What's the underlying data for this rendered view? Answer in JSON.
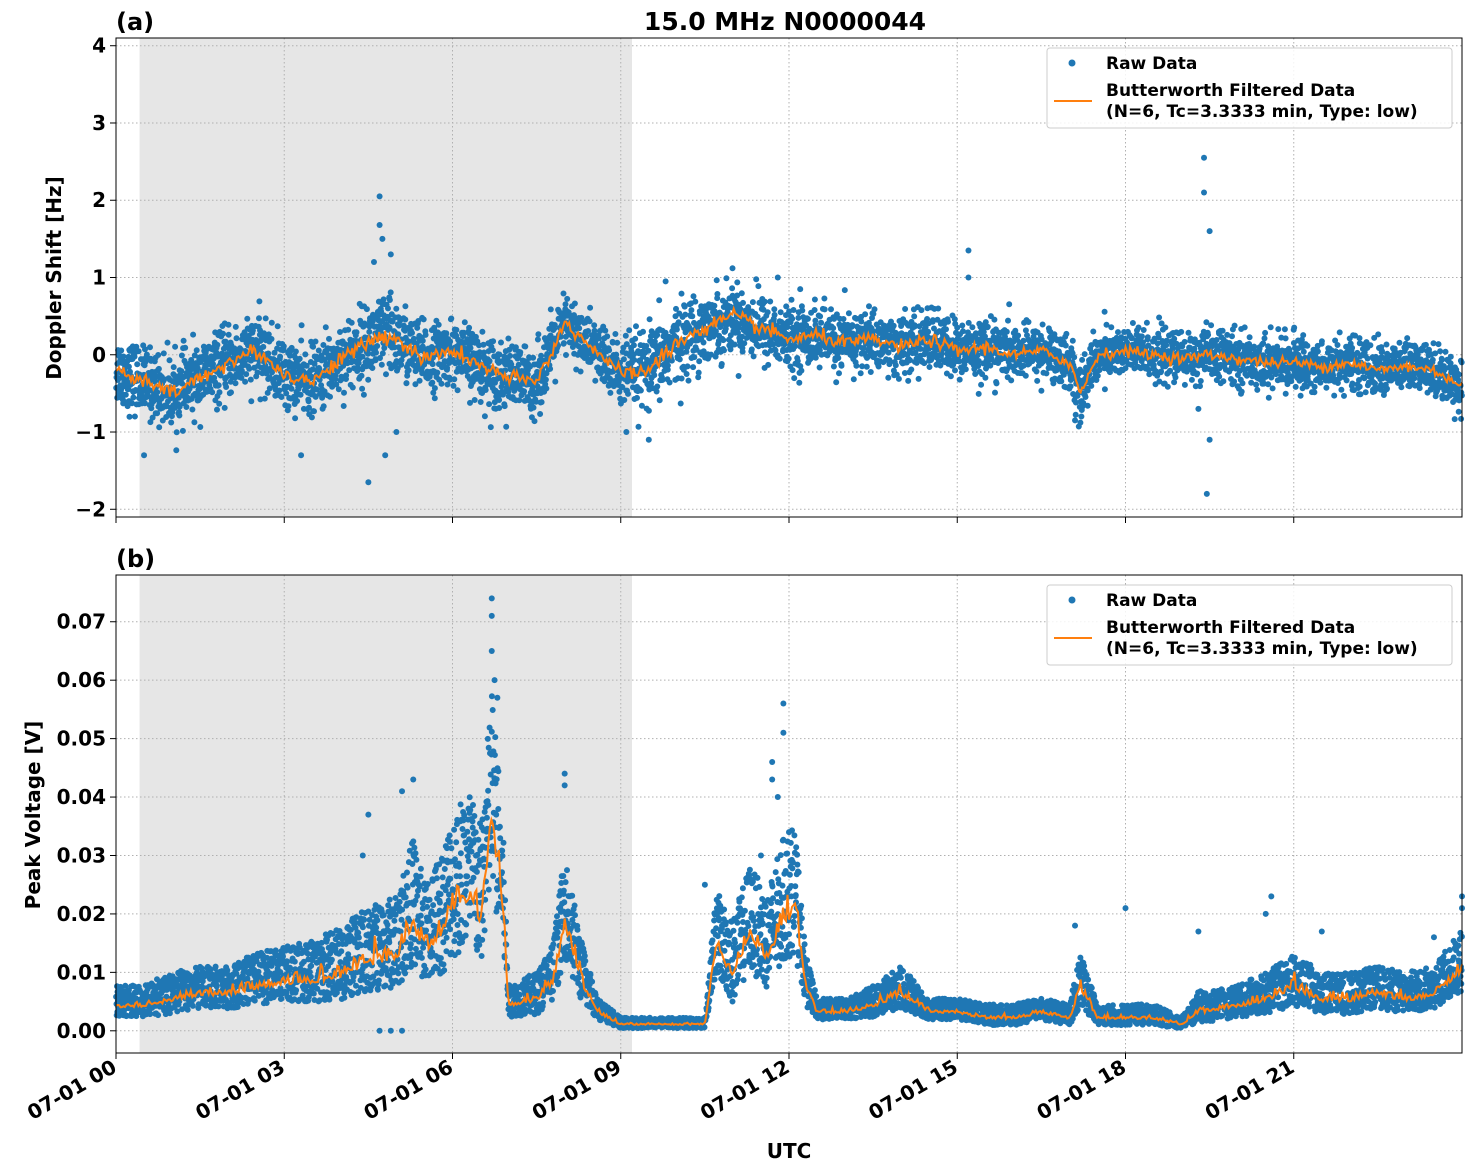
{
  "chart_data": [
    {
      "type": "scatter",
      "panel_label": "(a)",
      "title": "15.0 MHz N0000044",
      "ylabel": "Doppler Shift [Hz]",
      "xlabel": "",
      "xlim_hours": [
        0,
        24
      ],
      "ylim": [
        -2.1,
        4.1
      ],
      "yticks": [
        -2,
        -1,
        0,
        1,
        2,
        3,
        4
      ],
      "ytick_labels": [
        "−2",
        "−1",
        "0",
        "1",
        "2",
        "3",
        "4"
      ],
      "xticks_hours": [
        0,
        3,
        6,
        9,
        12,
        15,
        18,
        21
      ],
      "xtick_labels": [],
      "shaded_region_hours": [
        0.42,
        9.2
      ],
      "grid": true,
      "legend_position": "top-right",
      "legend": [
        {
          "label": "Raw Data",
          "color": "#1f77b4",
          "marker": "dot"
        },
        {
          "label": "Butterworth Filtered Data\n(N=6, Tc=3.3333 min, Type: low)",
          "color": "#ff7f0e",
          "marker": "line"
        }
      ],
      "series": [
        {
          "name": "Butterworth Filtered Data",
          "color": "#ff7f0e",
          "x": [
            0,
            0.5,
            1,
            1.5,
            2,
            2.5,
            3,
            3.5,
            4,
            4.5,
            4.8,
            5,
            5.5,
            6,
            6.5,
            7,
            7.5,
            8,
            8.5,
            9,
            9.5,
            10,
            10.5,
            11,
            11.5,
            12,
            12.5,
            13,
            13.5,
            14,
            14.5,
            15,
            15.5,
            16,
            16.5,
            17,
            17.2,
            17.5,
            18,
            18.5,
            19,
            19.5,
            20,
            20.5,
            21,
            21.5,
            22,
            22.5,
            23,
            23.5,
            24
          ],
          "y": [
            -0.2,
            -0.35,
            -0.5,
            -0.3,
            -0.1,
            0.05,
            -0.25,
            -0.35,
            -0.05,
            0.15,
            0.25,
            0.2,
            -0.05,
            0.05,
            -0.15,
            -0.3,
            -0.35,
            0.4,
            0.1,
            -0.25,
            -0.2,
            0.15,
            0.35,
            0.5,
            0.35,
            0.2,
            0.25,
            0.15,
            0.2,
            0.1,
            0.2,
            0.05,
            0.1,
            0.0,
            0.05,
            -0.1,
            -0.5,
            0.0,
            0.05,
            0.0,
            -0.05,
            0.0,
            -0.05,
            -0.1,
            -0.1,
            -0.15,
            -0.1,
            -0.2,
            -0.15,
            -0.2,
            -0.4
          ]
        },
        {
          "name": "Raw Data",
          "color": "#1f77b4",
          "spread": [
            0.4,
            0.4,
            0.4,
            0.4,
            0.4,
            0.4,
            0.4,
            0.4,
            0.4,
            0.45,
            0.5,
            0.45,
            0.4,
            0.35,
            0.4,
            0.4,
            0.4,
            0.35,
            0.35,
            0.4,
            0.45,
            0.45,
            0.4,
            0.4,
            0.4,
            0.35,
            0.35,
            0.35,
            0.35,
            0.35,
            0.35,
            0.35,
            0.35,
            0.3,
            0.3,
            0.35,
            0.35,
            0.3,
            0.3,
            0.3,
            0.3,
            0.3,
            0.3,
            0.3,
            0.3,
            0.3,
            0.3,
            0.3,
            0.3,
            0.3,
            0.3
          ],
          "outliers": [
            [
              4.6,
              1.2
            ],
            [
              4.7,
              2.05
            ],
            [
              4.7,
              1.68
            ],
            [
              4.75,
              1.5
            ],
            [
              4.8,
              -1.3
            ],
            [
              4.5,
              -1.65
            ],
            [
              4.9,
              1.3
            ],
            [
              5.0,
              -1.0
            ],
            [
              3.3,
              -1.3
            ],
            [
              0.5,
              -1.3
            ],
            [
              15.2,
              1.35
            ],
            [
              15.2,
              1.0
            ],
            [
              19.4,
              2.55
            ],
            [
              19.4,
              2.1
            ],
            [
              19.5,
              1.6
            ],
            [
              19.5,
              -1.1
            ],
            [
              19.45,
              -1.8
            ],
            [
              19.3,
              -0.7
            ],
            [
              9.1,
              -1.0
            ],
            [
              9.5,
              -1.1
            ],
            [
              9.8,
              0.95
            ],
            [
              17.1,
              -0.85
            ],
            [
              12.2,
              0.85
            ],
            [
              11.8,
              1.0
            ]
          ]
        }
      ]
    },
    {
      "type": "scatter",
      "panel_label": "(b)",
      "title": "",
      "ylabel": "Peak Voltage [V]",
      "xlabel": "UTC",
      "xlim_hours": [
        0,
        24
      ],
      "ylim": [
        -0.0038,
        0.078
      ],
      "yticks": [
        0,
        0.01,
        0.02,
        0.03,
        0.04,
        0.05,
        0.06,
        0.07
      ],
      "ytick_labels": [
        "0.00",
        "0.01",
        "0.02",
        "0.03",
        "0.04",
        "0.05",
        "0.06",
        "0.07"
      ],
      "xticks_hours": [
        0,
        3,
        6,
        9,
        12,
        15,
        18,
        21
      ],
      "xtick_labels": [
        "07-01 00",
        "07-01 03",
        "07-01 06",
        "07-01 09",
        "07-01 12",
        "07-01 15",
        "07-01 18",
        "07-01 21"
      ],
      "shaded_region_hours": [
        0.42,
        9.2
      ],
      "grid": true,
      "legend_position": "top-right",
      "legend": [
        {
          "label": "Raw Data",
          "color": "#1f77b4",
          "marker": "dot"
        },
        {
          "label": "Butterworth Filtered Data\n(N=6, Tc=3.3333 min, Type: low)",
          "color": "#ff7f0e",
          "marker": "line"
        }
      ],
      "series": [
        {
          "name": "Butterworth Filtered Data",
          "color": "#ff7f0e",
          "x": [
            0,
            0.5,
            1,
            1.5,
            2,
            2.5,
            3,
            3.5,
            4,
            4.5,
            5,
            5.3,
            5.5,
            5.8,
            6,
            6.3,
            6.5,
            6.7,
            6.9,
            7,
            7.5,
            7.8,
            8,
            8.3,
            8.6,
            9,
            9.5,
            10,
            10.5,
            10.7,
            11,
            11.3,
            11.6,
            11.9,
            12.1,
            12.3,
            12.5,
            13,
            13.5,
            14,
            14.5,
            15,
            15.5,
            16,
            16.5,
            17,
            17.2,
            17.5,
            18,
            18.5,
            19,
            19.3,
            19.5,
            20,
            20.5,
            21,
            21.5,
            22,
            22.5,
            23,
            23.5,
            24
          ],
          "y": [
            0.004,
            0.004,
            0.005,
            0.006,
            0.006,
            0.007,
            0.008,
            0.008,
            0.009,
            0.011,
            0.012,
            0.018,
            0.013,
            0.016,
            0.02,
            0.022,
            0.018,
            0.034,
            0.02,
            0.004,
            0.005,
            0.008,
            0.018,
            0.008,
            0.003,
            0.001,
            0.001,
            0.001,
            0.001,
            0.014,
            0.009,
            0.016,
            0.012,
            0.018,
            0.02,
            0.007,
            0.003,
            0.003,
            0.004,
            0.006,
            0.003,
            0.003,
            0.002,
            0.002,
            0.003,
            0.002,
            0.007,
            0.002,
            0.002,
            0.002,
            0.001,
            0.003,
            0.003,
            0.004,
            0.005,
            0.007,
            0.005,
            0.005,
            0.006,
            0.005,
            0.006,
            0.01
          ],
          "spread": [
            0.003,
            0.003,
            0.004,
            0.004,
            0.004,
            0.005,
            0.005,
            0.006,
            0.007,
            0.008,
            0.009,
            0.012,
            0.01,
            0.012,
            0.014,
            0.016,
            0.014,
            0.02,
            0.012,
            0.003,
            0.004,
            0.006,
            0.01,
            0.006,
            0.002,
            0.001,
            0.001,
            0.001,
            0.001,
            0.008,
            0.008,
            0.01,
            0.009,
            0.012,
            0.012,
            0.005,
            0.002,
            0.002,
            0.003,
            0.004,
            0.002,
            0.002,
            0.002,
            0.002,
            0.002,
            0.002,
            0.005,
            0.002,
            0.002,
            0.002,
            0.001,
            0.003,
            0.003,
            0.003,
            0.004,
            0.005,
            0.004,
            0.004,
            0.004,
            0.004,
            0.004,
            0.006
          ]
        },
        {
          "name": "Raw Data",
          "color": "#1f77b4",
          "outliers": [
            [
              6.7,
              0.074
            ],
            [
              6.7,
              0.071
            ],
            [
              6.7,
              0.065
            ],
            [
              6.75,
              0.06
            ],
            [
              6.8,
              0.057
            ],
            [
              8.0,
              0.044
            ],
            [
              8.0,
              0.042
            ],
            [
              5.3,
              0.043
            ],
            [
              5.1,
              0.041
            ],
            [
              4.5,
              0.037
            ],
            [
              4.4,
              0.03
            ],
            [
              11.9,
              0.056
            ],
            [
              11.9,
              0.051
            ],
            [
              11.7,
              0.046
            ],
            [
              11.7,
              0.043
            ],
            [
              11.8,
              0.04
            ],
            [
              12.0,
              0.034
            ],
            [
              10.5,
              0.025
            ],
            [
              11.5,
              0.03
            ],
            [
              19.3,
              0.017
            ],
            [
              17.1,
              0.018
            ],
            [
              18.0,
              0.021
            ],
            [
              20.5,
              0.02
            ],
            [
              20.6,
              0.023
            ],
            [
              21.5,
              0.017
            ],
            [
              23.5,
              0.016
            ],
            [
              24,
              0.023
            ],
            [
              24,
              0.021
            ],
            [
              4.7,
              0.0
            ],
            [
              4.9,
              0.0
            ],
            [
              5.1,
              0.0
            ]
          ]
        }
      ]
    }
  ]
}
